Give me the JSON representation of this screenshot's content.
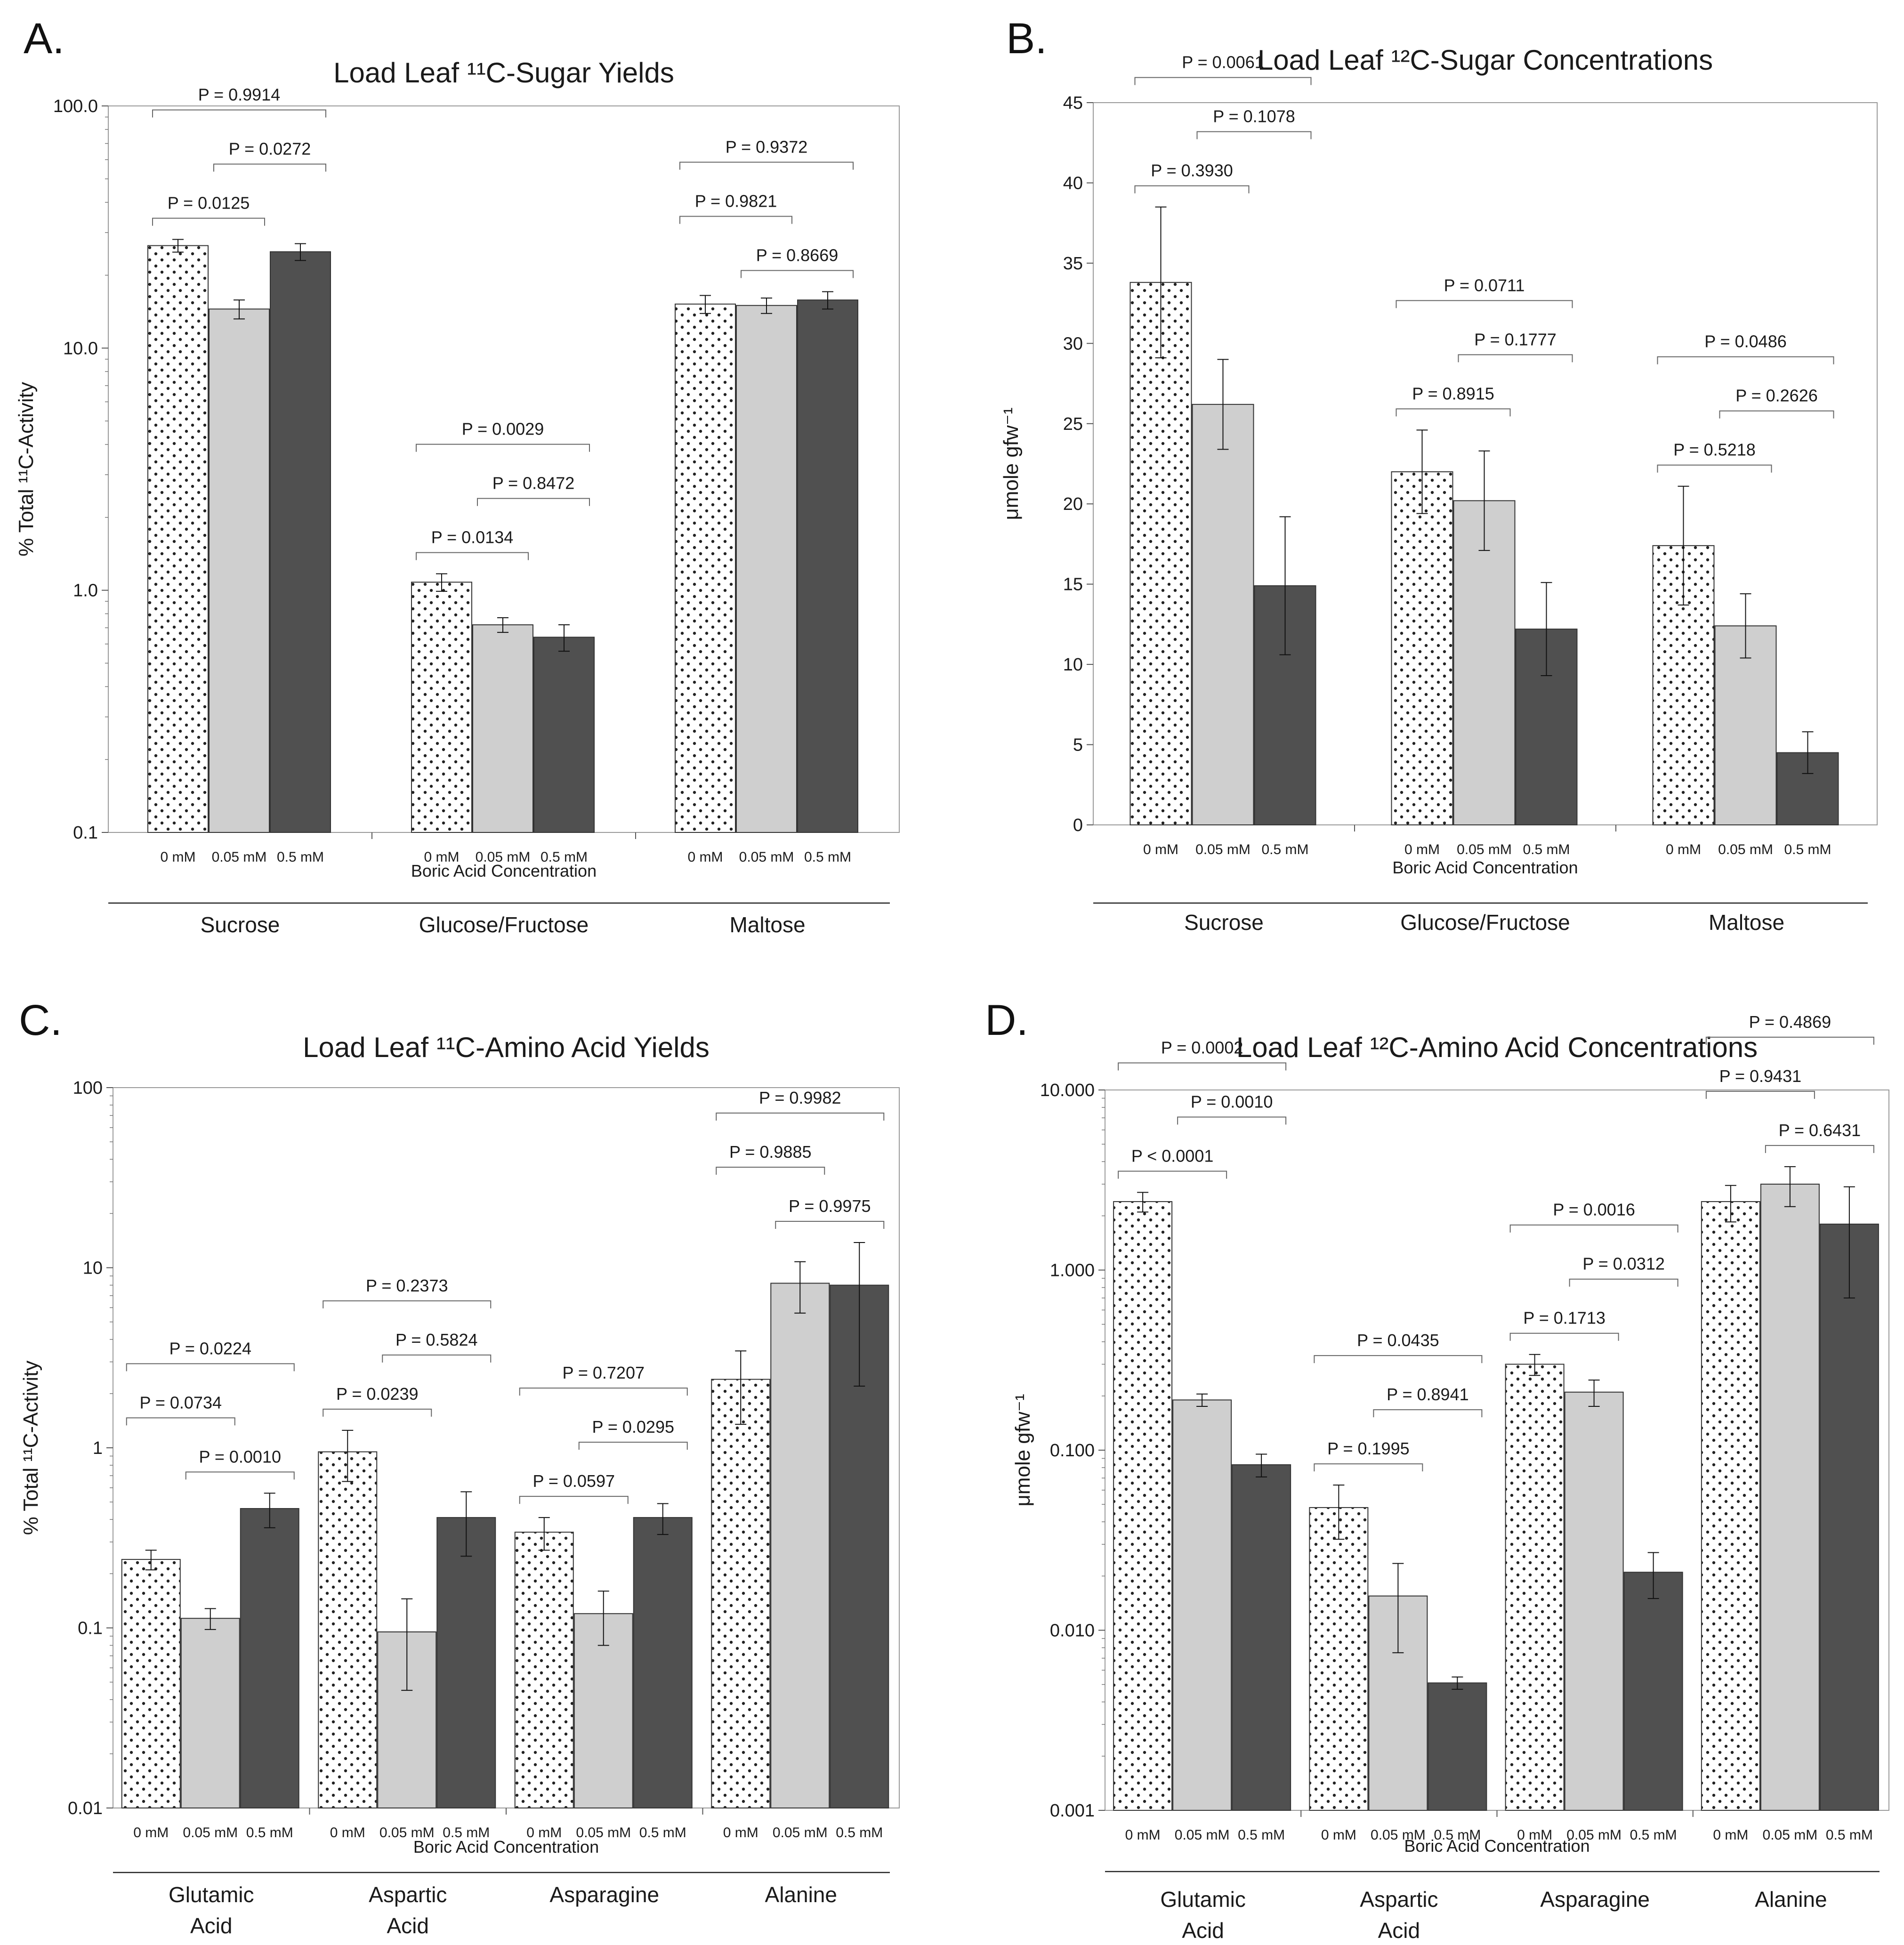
{
  "colors": {
    "bar_0mM": "#ffffff",
    "bar_005mM": "#cfcfcf",
    "bar_05mM": "#505050",
    "axis": "#555555",
    "bracket": "#666666"
  },
  "chart_data": [
    {
      "panel": "A.",
      "type": "bar",
      "title": "Load Leaf ¹¹C-Sugar Yields",
      "ylabel": "% Total ¹¹C-Activity",
      "xlabel": "Boric Acid Concentration",
      "yscale": "log",
      "ylim": [
        0.1,
        100
      ],
      "yticks": [
        "0.1",
        "1.0",
        "10.0",
        "100.0"
      ],
      "bar_labels": [
        "0 mM",
        "0.05 mM",
        "0.5 mM"
      ],
      "groups": [
        {
          "name": "Sucrose",
          "values": [
            26.5,
            14.5,
            25.0
          ],
          "errors": [
            1.6,
            1.3,
            2.0
          ],
          "pvalues": [
            {
              "label": "P = 0.9914",
              "from": 0,
              "to": 2
            },
            {
              "label": "P = 0.0125",
              "from": 0,
              "to": 1
            },
            {
              "label": "P = 0.0272",
              "from": 1,
              "to": 2
            }
          ]
        },
        {
          "name": "Glucose/Fructose",
          "values": [
            1.08,
            0.72,
            0.64
          ],
          "errors": [
            0.09,
            0.05,
            0.08
          ],
          "pvalues": [
            {
              "label": "P = 0.0029",
              "from": 0,
              "to": 2
            },
            {
              "label": "P = 0.0134",
              "from": 0,
              "to": 1
            },
            {
              "label": "P = 0.8472",
              "from": 1,
              "to": 2
            }
          ]
        },
        {
          "name": "Maltose",
          "values": [
            15.2,
            15.0,
            15.8
          ],
          "errors": [
            1.3,
            1.1,
            1.3
          ],
          "pvalues": [
            {
              "label": "P = 0.9372",
              "from": 0,
              "to": 2
            },
            {
              "label": "P = 0.8669",
              "from": 1,
              "to": 2
            },
            {
              "label": "P = 0.9821",
              "from": 0,
              "to": 1
            }
          ]
        }
      ]
    },
    {
      "panel": "B.",
      "type": "bar",
      "title": "Load Leaf ¹²C-Sugar Concentrations",
      "ylabel": "μmole gfw⁻¹",
      "xlabel": "Boric Acid Concentration",
      "yscale": "linear",
      "ylim": [
        0,
        45
      ],
      "yticks": [
        "0",
        "5",
        "10",
        "15",
        "20",
        "25",
        "30",
        "35",
        "40",
        "45"
      ],
      "bar_labels": [
        "0 mM",
        "0.05 mM",
        "0.5 mM"
      ],
      "groups": [
        {
          "name": "Sucrose",
          "values": [
            33.8,
            26.2,
            14.9
          ],
          "errors": [
            4.7,
            2.8,
            4.3
          ],
          "pvalues": [
            {
              "label": "P = 0.0061",
              "from": 0,
              "to": 2
            },
            {
              "label": "P = 0.3930",
              "from": 0,
              "to": 1
            },
            {
              "label": "P = 0.1078",
              "from": 1,
              "to": 2
            }
          ]
        },
        {
          "name": "Glucose/Fructose",
          "values": [
            22.0,
            20.2,
            12.2
          ],
          "errors": [
            2.6,
            3.1,
            2.9
          ],
          "pvalues": [
            {
              "label": "P = 0.0711",
              "from": 0,
              "to": 2
            },
            {
              "label": "P = 0.8915",
              "from": 0,
              "to": 1
            },
            {
              "label": "P = 0.1777",
              "from": 1,
              "to": 2
            }
          ]
        },
        {
          "name": "Maltose",
          "values": [
            17.4,
            12.4,
            4.5
          ],
          "errors": [
            3.7,
            2.0,
            1.3
          ],
          "pvalues": [
            {
              "label": "P = 0.0486",
              "from": 0,
              "to": 2
            },
            {
              "label": "P = 0.5218",
              "from": 0,
              "to": 1
            },
            {
              "label": "P = 0.2626",
              "from": 1,
              "to": 2
            }
          ]
        }
      ]
    },
    {
      "panel": "C.",
      "type": "bar",
      "title": "Load Leaf ¹¹C-Amino Acid Yields",
      "ylabel": "% Total ¹¹C-Activity",
      "xlabel": "Boric Acid Concentration",
      "yscale": "log",
      "ylim": [
        0.01,
        100
      ],
      "yticks": [
        "0.01",
        "0.1",
        "1",
        "10",
        "100"
      ],
      "bar_labels": [
        "0 mM",
        "0.05 mM",
        "0.5 mM"
      ],
      "groups": [
        {
          "name": "Glutamic Acid",
          "values": [
            0.24,
            0.113,
            0.46
          ],
          "errors": [
            0.03,
            0.015,
            0.1
          ],
          "pvalues": [
            {
              "label": "P = 0.0224",
              "from": 0,
              "to": 2
            },
            {
              "label": "P = 0.0010",
              "from": 1,
              "to": 2
            },
            {
              "label": "P = 0.0734",
              "from": 0,
              "to": 1
            }
          ]
        },
        {
          "name": "Aspartic Acid",
          "values": [
            0.95,
            0.095,
            0.41
          ],
          "errors": [
            0.3,
            0.05,
            0.16
          ],
          "pvalues": [
            {
              "label": "P = 0.2373",
              "from": 0,
              "to": 2
            },
            {
              "label": "P = 0.0239",
              "from": 0,
              "to": 1
            },
            {
              "label": "P = 0.5824",
              "from": 1,
              "to": 2
            }
          ]
        },
        {
          "name": "Asparagine",
          "values": [
            0.34,
            0.12,
            0.41
          ],
          "errors": [
            0.07,
            0.04,
            0.08
          ],
          "pvalues": [
            {
              "label": "P = 0.7207",
              "from": 0,
              "to": 2
            },
            {
              "label": "P = 0.0597",
              "from": 0,
              "to": 1
            },
            {
              "label": "P = 0.0295",
              "from": 1,
              "to": 2
            }
          ]
        },
        {
          "name": "Alanine",
          "values": [
            2.4,
            8.2,
            8.0
          ],
          "errors": [
            1.05,
            2.6,
            5.8
          ],
          "pvalues": [
            {
              "label": "P = 0.9982",
              "from": 0,
              "to": 2
            },
            {
              "label": "P = 0.9975",
              "from": 1,
              "to": 2
            },
            {
              "label": "P = 0.9885",
              "from": 0,
              "to": 1
            }
          ]
        }
      ]
    },
    {
      "panel": "D.",
      "type": "bar",
      "title": "Load Leaf ¹²C-Amino Acid Concentrations",
      "ylabel": "μmole gfw⁻¹",
      "xlabel": "Boric Acid Concentration",
      "yscale": "log",
      "ylim": [
        0.001,
        10
      ],
      "yticks": [
        "0.001",
        "0.010",
        "0.100",
        "1.000",
        "10.000"
      ],
      "bar_labels": [
        "0 mM",
        "0.05 mM",
        "0.5 mM"
      ],
      "groups": [
        {
          "name": "Glutamic Acid",
          "values": [
            2.4,
            0.19,
            0.083
          ],
          "errors": [
            0.3,
            0.015,
            0.012
          ],
          "pvalues": [
            {
              "label": "P = 0.0002",
              "from": 0,
              "to": 2
            },
            {
              "label": "P < 0.0001",
              "from": 0,
              "to": 1
            },
            {
              "label": "P = 0.0010",
              "from": 1,
              "to": 2
            }
          ]
        },
        {
          "name": "Aspartic Acid",
          "values": [
            0.048,
            0.0155,
            0.0051
          ],
          "errors": [
            0.016,
            0.008,
            0.0004
          ],
          "pvalues": [
            {
              "label": "P = 0.0435",
              "from": 0,
              "to": 2
            },
            {
              "label": "P = 0.1995",
              "from": 0,
              "to": 1
            },
            {
              "label": "P = 0.8941",
              "from": 1,
              "to": 2
            }
          ]
        },
        {
          "name": "Asparagine",
          "values": [
            0.3,
            0.21,
            0.021
          ],
          "errors": [
            0.04,
            0.035,
            0.006
          ],
          "pvalues": [
            {
              "label": "P = 0.0016",
              "from": 0,
              "to": 2
            },
            {
              "label": "P = 0.1713",
              "from": 0,
              "to": 1
            },
            {
              "label": "P = 0.0312",
              "from": 1,
              "to": 2
            }
          ]
        },
        {
          "name": "Alanine",
          "values": [
            2.4,
            3.0,
            1.8
          ],
          "errors": [
            0.55,
            0.75,
            1.1
          ],
          "pvalues": [
            {
              "label": "P = 0.4869",
              "from": 0,
              "to": 2
            },
            {
              "label": "P = 0.6431",
              "from": 1,
              "to": 2
            },
            {
              "label": "P = 0.9431",
              "from": 0,
              "to": 1
            }
          ]
        }
      ]
    }
  ]
}
